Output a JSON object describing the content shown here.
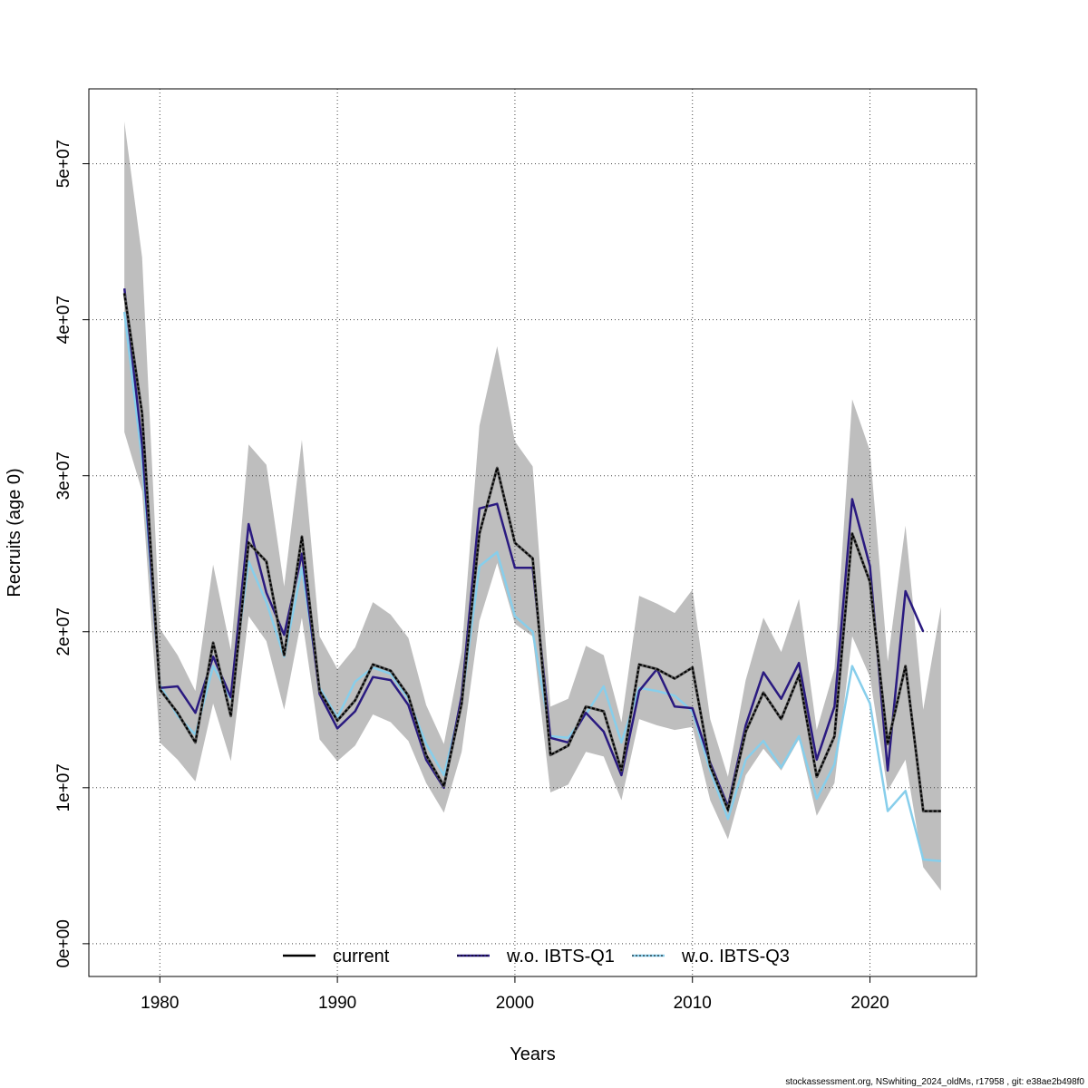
{
  "chart_data": {
    "type": "line",
    "xlabel": "Years",
    "ylabel": "Recruits (age 0)",
    "xlim": [
      1976,
      2026
    ],
    "ylim": [
      -2100000,
      54800000
    ],
    "x_ticks": [
      1980,
      1990,
      2000,
      2010,
      2020
    ],
    "y_ticks": [
      0,
      10000000,
      20000000,
      30000000,
      40000000,
      50000000
    ],
    "y_tick_labels": [
      "0e+00",
      "1e+07",
      "2e+07",
      "3e+07",
      "4e+07",
      "5e+07"
    ],
    "grid": true,
    "legend_position": "bottom",
    "colors": {
      "current": "#000000",
      "w.o. IBTS-Q1": "#2a1a80",
      "w.o. IBTS-Q3": "#87ceeb",
      "ci_band": "#bebebe"
    },
    "years": [
      1978,
      1979,
      1980,
      1981,
      1982,
      1983,
      1984,
      1985,
      1986,
      1987,
      1988,
      1989,
      1990,
      1991,
      1992,
      1993,
      1994,
      1995,
      1996,
      1997,
      1998,
      1999,
      2000,
      2001,
      2002,
      2003,
      2004,
      2005,
      2006,
      2007,
      2008,
      2009,
      2010,
      2011,
      2012,
      2013,
      2014,
      2015,
      2016,
      2017,
      2018,
      2019,
      2020,
      2021,
      2022,
      2023,
      2024
    ],
    "ci_band": {
      "lower": [
        32800000,
        29000000,
        12900000,
        11800000,
        10400000,
        15400000,
        11700000,
        21000000,
        19400000,
        15000000,
        20900000,
        13100000,
        11700000,
        12700000,
        14700000,
        14200000,
        13000000,
        10300000,
        8400000,
        12300000,
        20700000,
        24400000,
        20500000,
        19700000,
        9700000,
        10200000,
        12300000,
        12000000,
        9200000,
        14400000,
        14000000,
        13700000,
        13900000,
        9200000,
        6700000,
        10800000,
        12500000,
        11100000,
        13100000,
        8200000,
        10300000,
        19700000,
        17100000,
        9800000,
        11800000,
        4900000,
        3400000
      ],
      "upper": [
        52700000,
        44000000,
        20200000,
        18500000,
        16200000,
        24300000,
        18800000,
        32000000,
        30700000,
        22900000,
        32300000,
        19700000,
        17600000,
        19000000,
        21900000,
        21100000,
        19600000,
        15300000,
        12800000,
        18700000,
        33200000,
        38300000,
        32200000,
        30600000,
        15200000,
        15700000,
        19100000,
        18500000,
        14200000,
        22300000,
        21800000,
        21200000,
        22700000,
        14400000,
        10700000,
        16900000,
        20900000,
        18700000,
        22100000,
        13700000,
        17600000,
        34900000,
        31600000,
        18100000,
        26800000,
        15000000,
        21600000
      ]
    },
    "series": [
      {
        "name": "current",
        "style": "dashed-on-solid",
        "values": [
          41700000,
          34000000,
          16300000,
          14800000,
          12900000,
          19300000,
          14600000,
          25700000,
          24500000,
          18500000,
          26100000,
          16200000,
          14300000,
          15600000,
          17900000,
          17500000,
          15900000,
          12100000,
          10100000,
          15400000,
          26300000,
          30500000,
          25700000,
          24700000,
          12100000,
          12700000,
          15200000,
          14900000,
          11100000,
          17900000,
          17600000,
          17000000,
          17700000,
          11400000,
          8600000,
          13600000,
          16100000,
          14400000,
          17200000,
          10700000,
          13300000,
          26300000,
          23200000,
          12800000,
          17800000,
          8500000,
          8500000
        ]
      },
      {
        "name": "w.o. IBTS-Q1",
        "style": "solid",
        "values": [
          42000000,
          32000000,
          16400000,
          16500000,
          14800000,
          18400000,
          15800000,
          26900000,
          22500000,
          19800000,
          25000000,
          16000000,
          13800000,
          14900000,
          17100000,
          16900000,
          15300000,
          11800000,
          10000000,
          15900000,
          27900000,
          28200000,
          24100000,
          24100000,
          13200000,
          12900000,
          14800000,
          13600000,
          10800000,
          16200000,
          17600000,
          15200000,
          15100000,
          11600000,
          8800000,
          14000000,
          17400000,
          15700000,
          18000000,
          11800000,
          15200000,
          28500000,
          24200000,
          11100000,
          22600000,
          20000000,
          null
        ]
      },
      {
        "name": "w.o. IBTS-Q3",
        "style": "solid",
        "values": [
          40500000,
          31000000,
          16600000,
          14600000,
          13400000,
          17800000,
          15700000,
          24500000,
          21900000,
          18400000,
          24100000,
          16400000,
          14500000,
          16800000,
          17700000,
          17300000,
          15700000,
          12800000,
          10800000,
          15500000,
          24200000,
          25100000,
          21000000,
          20000000,
          13300000,
          13200000,
          14700000,
          16500000,
          12900000,
          16400000,
          16200000,
          15900000,
          14900000,
          11100000,
          8000000,
          11800000,
          13000000,
          11300000,
          13300000,
          9300000,
          11500000,
          17800000,
          15400000,
          8500000,
          9800000,
          5400000,
          5300000
        ]
      }
    ]
  },
  "footer": {
    "note": "stockassessment.org, NSwhiting_2024_oldMs, r17958 , git: e38ae2b498f0"
  }
}
